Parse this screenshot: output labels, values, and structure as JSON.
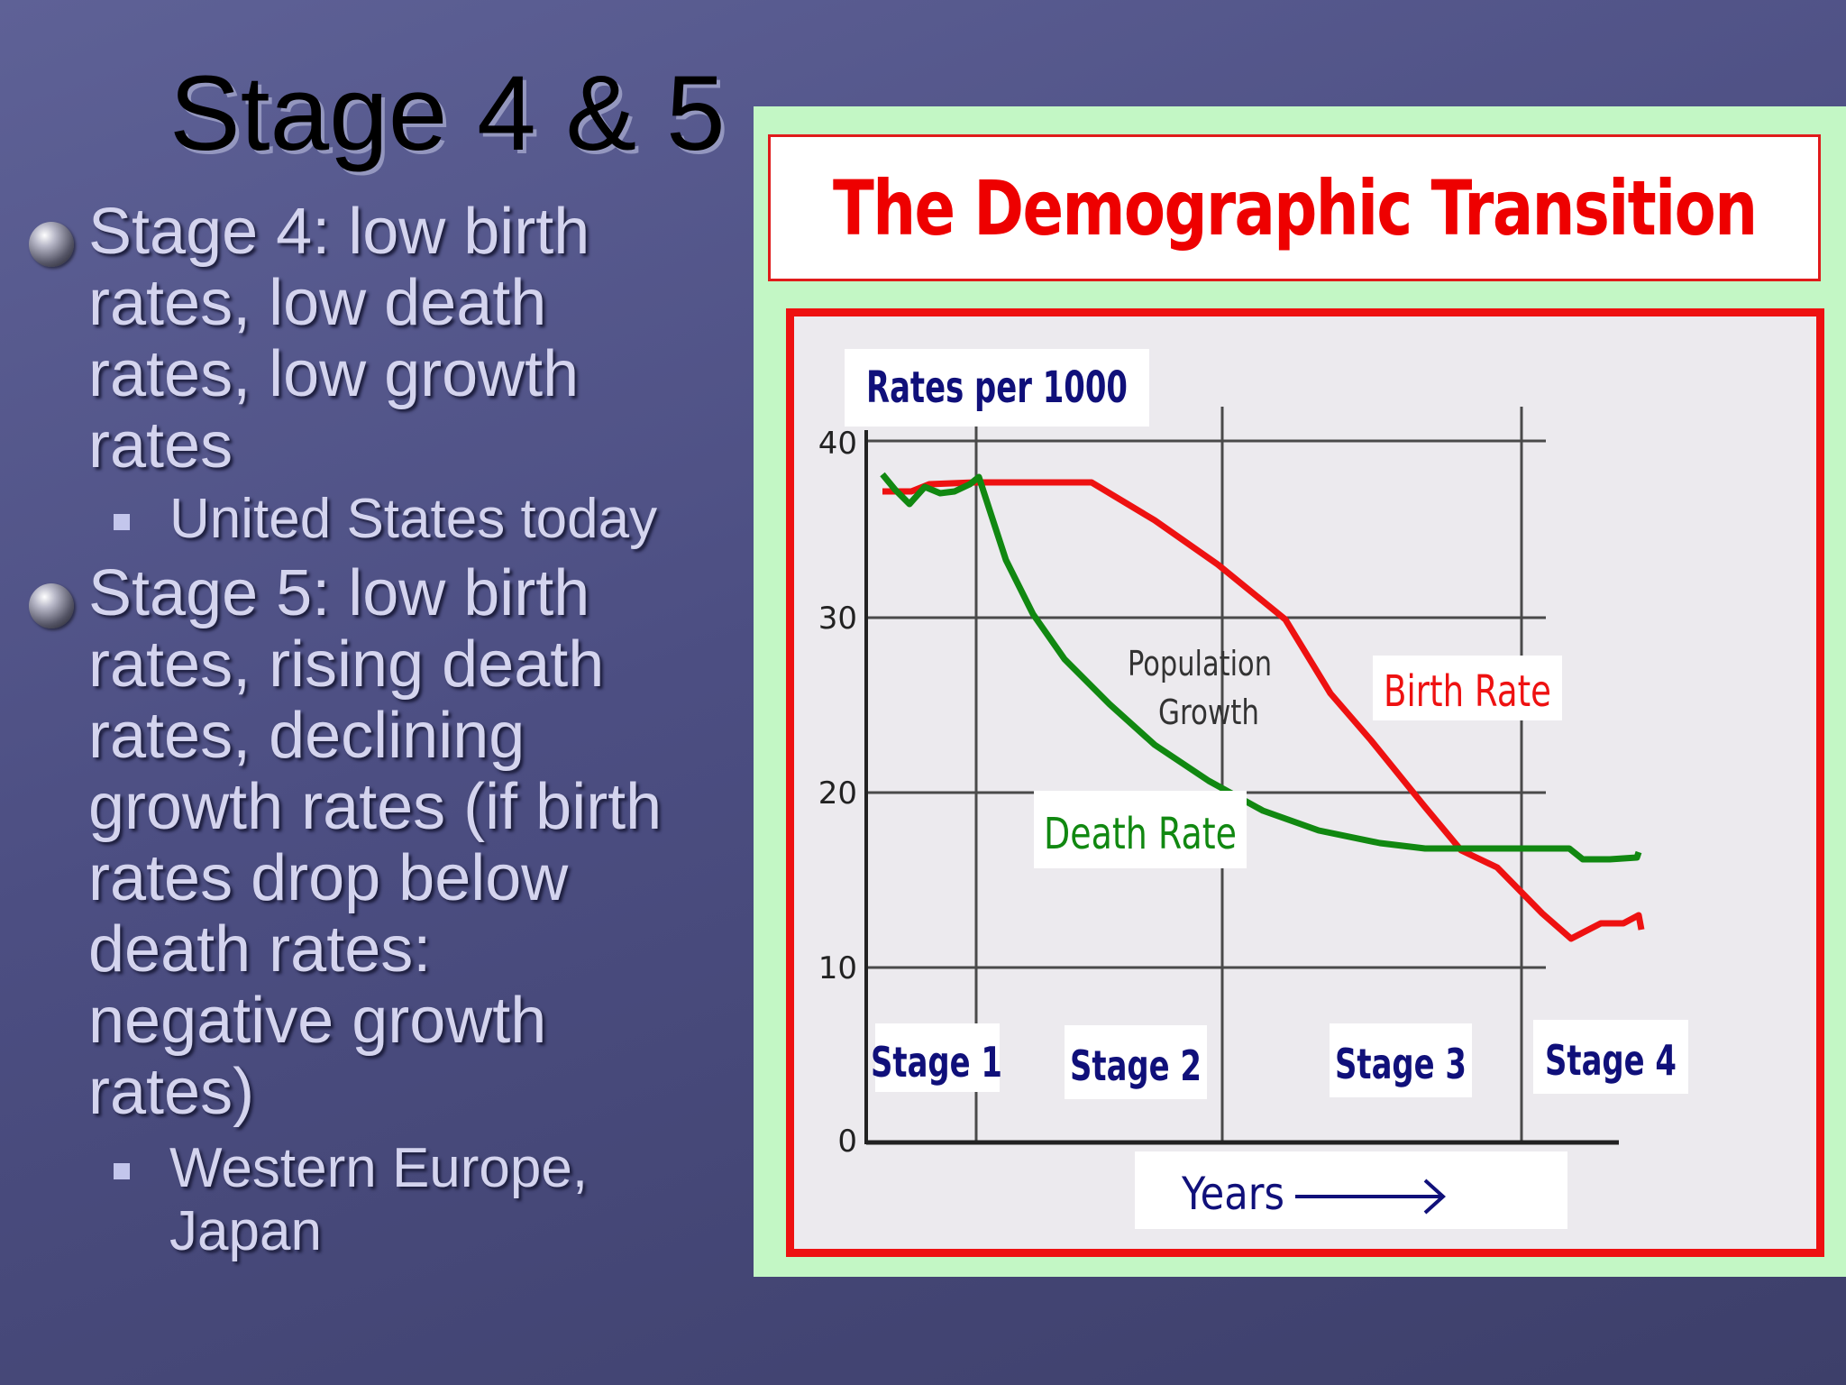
{
  "slide": {
    "title": "Stage 4 & 5",
    "bullets": [
      {
        "lines": [
          "Stage 4: low birth",
          "rates, low death",
          "rates, low growth",
          "rates"
        ],
        "sub": [
          "United States today"
        ]
      },
      {
        "lines": [
          "Stage 5: low birth",
          "rates, rising death",
          "rates, declining",
          "growth rates (if birth",
          "rates drop below",
          "death rates:",
          "negative growth",
          "rates)"
        ],
        "sub": [
          "Western Europe,",
          "Japan"
        ]
      }
    ]
  },
  "figure": {
    "title": "The Demographic Transition",
    "rates_label": "Rates per 1000",
    "y_ticks": [
      "40",
      "30",
      "20",
      "10",
      "0"
    ],
    "stages": [
      "Stage 1",
      "Stage 2",
      "Stage 3",
      "Stage 4"
    ],
    "x_label": "Years",
    "curve_labels": {
      "population_growth": [
        "Population",
        "Growth"
      ],
      "birth_rate": "Birth Rate",
      "death_rate": "Death Rate"
    },
    "colors": {
      "birth": "#ee1111",
      "death": "#118811",
      "frame": "#ee1111",
      "figure_bg": "#c3f7c5"
    }
  }
}
